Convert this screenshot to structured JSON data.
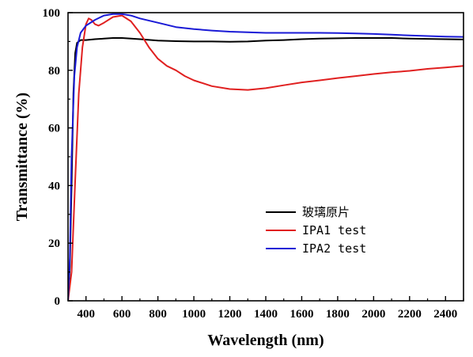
{
  "chart_data": {
    "type": "line",
    "xlabel": "Wavelength (nm)",
    "ylabel": "Transmittance (%)",
    "xlim": [
      300,
      2500
    ],
    "ylim": [
      0,
      100
    ],
    "x_ticks": [
      400,
      600,
      800,
      1000,
      1200,
      1400,
      1600,
      1800,
      2000,
      2200,
      2400
    ],
    "y_ticks": [
      0,
      20,
      40,
      60,
      80,
      100
    ],
    "grid": false,
    "legend_position": "lower-right",
    "series": [
      {
        "name": "玻璃原片",
        "color": "#000000",
        "points": [
          [
            300,
            0
          ],
          [
            310,
            12
          ],
          [
            320,
            40
          ],
          [
            330,
            72
          ],
          [
            340,
            86
          ],
          [
            350,
            89.5
          ],
          [
            370,
            90.5
          ],
          [
            400,
            90.5
          ],
          [
            450,
            90.8
          ],
          [
            500,
            91
          ],
          [
            550,
            91.2
          ],
          [
            600,
            91.2
          ],
          [
            700,
            90.8
          ],
          [
            800,
            90.3
          ],
          [
            900,
            90.1
          ],
          [
            1000,
            90
          ],
          [
            1100,
            90
          ],
          [
            1200,
            89.9
          ],
          [
            1300,
            90
          ],
          [
            1400,
            90.3
          ],
          [
            1500,
            90.5
          ],
          [
            1600,
            90.8
          ],
          [
            1700,
            91
          ],
          [
            1800,
            91.1
          ],
          [
            1900,
            91.2
          ],
          [
            2000,
            91.2
          ],
          [
            2100,
            91.2
          ],
          [
            2200,
            91
          ],
          [
            2300,
            90.9
          ],
          [
            2400,
            90.8
          ],
          [
            2500,
            90.7
          ]
        ]
      },
      {
        "name": "IPA1 test",
        "color": "#e02020",
        "points": [
          [
            300,
            0
          ],
          [
            320,
            10
          ],
          [
            340,
            42
          ],
          [
            360,
            72
          ],
          [
            380,
            88
          ],
          [
            400,
            96
          ],
          [
            415,
            98
          ],
          [
            430,
            97.5
          ],
          [
            450,
            96
          ],
          [
            470,
            95.5
          ],
          [
            500,
            96.5
          ],
          [
            550,
            98.5
          ],
          [
            600,
            99
          ],
          [
            650,
            97
          ],
          [
            700,
            93
          ],
          [
            750,
            88
          ],
          [
            800,
            84
          ],
          [
            850,
            81.5
          ],
          [
            900,
            80
          ],
          [
            950,
            78
          ],
          [
            1000,
            76.5
          ],
          [
            1100,
            74.5
          ],
          [
            1200,
            73.5
          ],
          [
            1300,
            73.2
          ],
          [
            1400,
            73.8
          ],
          [
            1500,
            74.8
          ],
          [
            1600,
            75.8
          ],
          [
            1700,
            76.5
          ],
          [
            1800,
            77.3
          ],
          [
            1900,
            78
          ],
          [
            2000,
            78.7
          ],
          [
            2100,
            79.3
          ],
          [
            2200,
            79.8
          ],
          [
            2300,
            80.5
          ],
          [
            2400,
            81
          ],
          [
            2500,
            81.5
          ]
        ]
      },
      {
        "name": "IPA2 test",
        "color": "#1a1ad6",
        "points": [
          [
            300,
            0
          ],
          [
            310,
            15
          ],
          [
            320,
            50
          ],
          [
            335,
            78
          ],
          [
            350,
            88
          ],
          [
            370,
            93
          ],
          [
            400,
            95.5
          ],
          [
            450,
            97.5
          ],
          [
            500,
            99
          ],
          [
            550,
            99.5
          ],
          [
            600,
            99.5
          ],
          [
            650,
            99
          ],
          [
            700,
            98
          ],
          [
            800,
            96.5
          ],
          [
            900,
            95
          ],
          [
            1000,
            94.3
          ],
          [
            1100,
            93.8
          ],
          [
            1200,
            93.4
          ],
          [
            1300,
            93.2
          ],
          [
            1400,
            93
          ],
          [
            1500,
            93
          ],
          [
            1600,
            93
          ],
          [
            1700,
            93
          ],
          [
            1800,
            92.9
          ],
          [
            1900,
            92.8
          ],
          [
            2000,
            92.6
          ],
          [
            2100,
            92.4
          ],
          [
            2200,
            92.1
          ],
          [
            2300,
            91.9
          ],
          [
            2400,
            91.7
          ],
          [
            2500,
            91.6
          ]
        ]
      }
    ]
  }
}
